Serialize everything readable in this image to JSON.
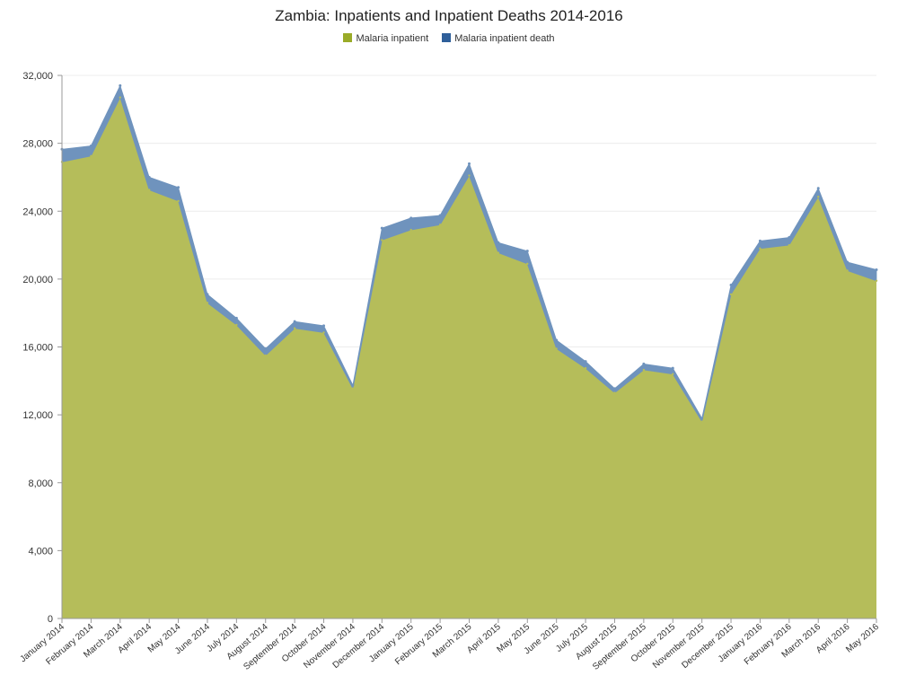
{
  "chart_data": {
    "type": "area",
    "stacked": true,
    "title": "Zambia: Inpatients and Inpatient Deaths 2014-2016",
    "categories": [
      "January 2014",
      "February 2014",
      "March 2014",
      "April 2014",
      "May 2014",
      "June 2014",
      "July 2014",
      "August 2014",
      "September 2014",
      "October 2014",
      "November 2014",
      "December 2014",
      "January 2015",
      "February 2015",
      "March 2015",
      "April 2015",
      "May 2015",
      "June 2015",
      "July 2015",
      "August 2015",
      "September 2015",
      "October 2015",
      "November 2015",
      "December 2015",
      "January 2016",
      "February 2016",
      "March 2016",
      "April 2016",
      "May 2016"
    ],
    "series": [
      {
        "name": "Malaria inpatient",
        "color": "#b5bd4e",
        "values": [
          26900,
          27250,
          30700,
          25250,
          24600,
          18600,
          17300,
          15500,
          17100,
          16850,
          13550,
          22300,
          22900,
          23200,
          26100,
          21550,
          20900,
          15900,
          14750,
          13300,
          14650,
          14400,
          11600,
          19100,
          21800,
          22000,
          24850,
          20500,
          19900
        ]
      },
      {
        "name": "Malaria inpatient death",
        "color": "#2f5f9a",
        "values": [
          750,
          600,
          700,
          750,
          800,
          500,
          400,
          400,
          400,
          400,
          200,
          700,
          700,
          550,
          700,
          600,
          750,
          500,
          400,
          250,
          350,
          350,
          200,
          550,
          450,
          450,
          500,
          500,
          650
        ]
      }
    ],
    "ylim": [
      0,
      32000
    ],
    "yticks": [
      "0",
      "4,000",
      "8,000",
      "12,000",
      "16,000",
      "20,000",
      "24,000",
      "28,000",
      "32,000"
    ],
    "grid": true,
    "legend": "top-center"
  }
}
